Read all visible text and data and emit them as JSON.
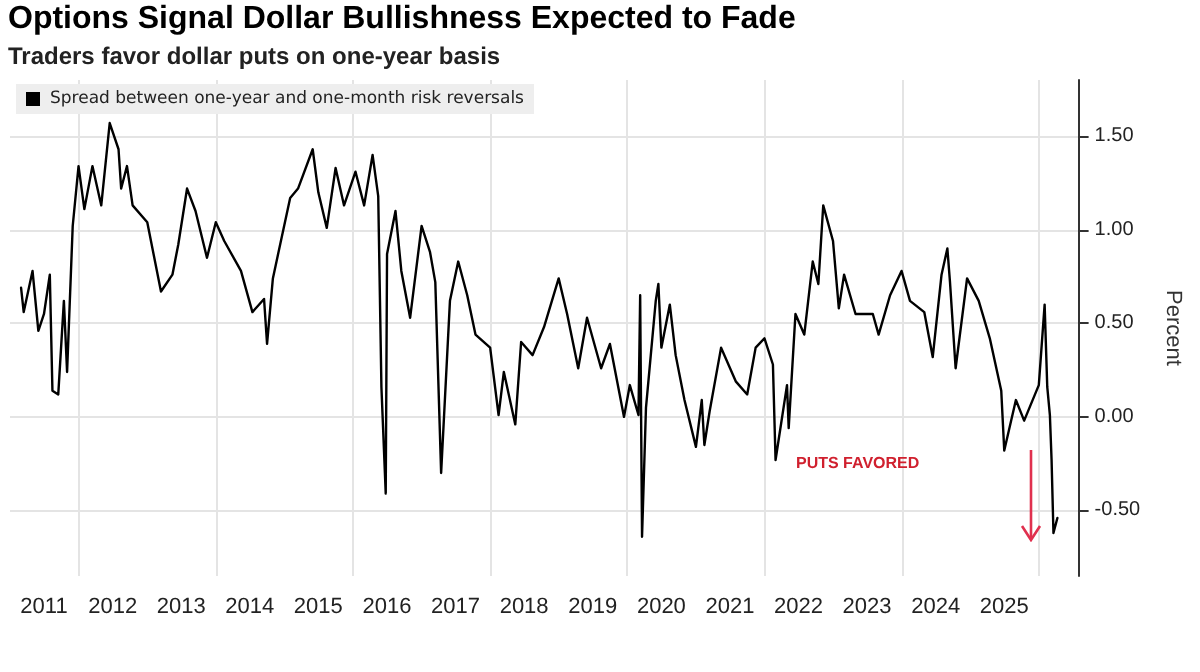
{
  "chart_data": {
    "type": "line",
    "title": "Options Signal Dollar Bullishness Expected to Fade",
    "subtitle": "Traders favor dollar puts on one-year basis",
    "ylabel": "Percent",
    "annotations": [
      "PUTS FAVORED"
    ],
    "series": [
      {
        "name": "Spread between one-year and one-month risk reversals",
        "color": "#000000",
        "x": [
          "2011-03-01",
          "2011-03-15",
          "2011-05-01",
          "2011-06-01",
          "2011-07-01",
          "2011-08-01",
          "2011-08-15",
          "2011-09-15",
          "2011-10-15",
          "2011-11-01",
          "2011-12-01",
          "2012-01-01",
          "2012-02-01",
          "2012-03-15",
          "2012-05-01",
          "2012-06-15",
          "2012-08-01",
          "2012-08-15",
          "2012-09-15",
          "2012-10-15",
          "2013-01-01",
          "2013-03-15",
          "2013-05-15",
          "2013-06-15",
          "2013-08-01",
          "2013-09-15",
          "2013-11-15",
          "2014-01-01",
          "2014-02-15",
          "2014-05-15",
          "2014-07-15",
          "2014-09-15",
          "2014-10-01",
          "2014-11-01",
          "2015-02-01",
          "2015-03-15",
          "2015-06-01",
          "2015-07-01",
          "2015-08-15",
          "2015-10-01",
          "2015-11-15",
          "2016-01-15",
          "2016-03-01",
          "2016-04-15",
          "2016-05-15",
          "2016-06-01",
          "2016-06-24",
          "2016-07-01",
          "2016-08-15",
          "2016-09-15",
          "2016-11-01",
          "2017-01-01",
          "2017-02-15",
          "2017-03-15",
          "2017-04-15",
          "2017-06-01",
          "2017-07-15",
          "2017-09-01",
          "2017-10-15",
          "2018-01-01",
          "2018-02-15",
          "2018-03-15",
          "2018-05-15",
          "2018-06-15",
          "2018-08-15",
          "2018-10-15",
          "2019-01-01",
          "2019-02-15",
          "2019-04-15",
          "2019-06-01",
          "2019-08-15",
          "2019-10-01",
          "2019-12-15",
          "2020-01-15",
          "2020-03-01",
          "2020-03-10",
          "2020-03-20",
          "2020-04-10",
          "2020-06-01",
          "2020-06-15",
          "2020-07-01",
          "2020-08-15",
          "2020-09-15",
          "2020-11-01",
          "2021-01-01",
          "2021-02-01",
          "2021-02-15",
          "2021-03-15",
          "2021-05-15",
          "2021-08-01",
          "2021-10-01",
          "2021-11-15",
          "2022-01-01",
          "2022-02-15",
          "2022-03-01",
          "2022-05-01",
          "2022-05-10",
          "2022-06-15",
          "2022-08-01",
          "2022-09-15",
          "2022-10-15",
          "2022-11-10",
          "2023-01-01",
          "2023-02-01",
          "2023-03-01",
          "2023-05-01",
          "2023-08-01",
          "2023-09-01",
          "2023-11-01",
          "2024-01-01",
          "2024-02-15",
          "2024-05-01",
          "2024-06-15",
          "2024-08-01",
          "2024-09-01",
          "2024-09-15",
          "2024-10-15",
          "2024-12-15",
          "2025-02-15",
          "2025-04-15",
          "2025-06-15",
          "2025-07-01",
          "2025-09-01",
          "2025-10-15",
          "2026-01-01",
          "2026-02-01",
          "2026-02-15",
          "2026-03-01",
          "2026-03-10",
          "2026-03-20",
          "2026-04-10"
        ],
        "values": [
          0.69,
          0.56,
          0.78,
          0.46,
          0.55,
          0.76,
          0.14,
          0.12,
          0.62,
          0.24,
          1.02,
          1.34,
          1.11,
          1.34,
          1.13,
          1.57,
          1.43,
          1.22,
          1.34,
          1.13,
          1.04,
          0.67,
          0.76,
          0.92,
          1.22,
          1.1,
          0.85,
          1.04,
          0.94,
          0.78,
          0.56,
          0.63,
          0.39,
          0.74,
          1.17,
          1.22,
          1.43,
          1.2,
          1.01,
          1.33,
          1.13,
          1.31,
          1.13,
          1.4,
          1.18,
          0.16,
          -0.41,
          0.87,
          1.1,
          0.78,
          0.53,
          1.02,
          0.88,
          0.72,
          -0.3,
          0.62,
          0.83,
          0.65,
          0.44,
          0.37,
          0.01,
          0.24,
          -0.04,
          0.4,
          0.33,
          0.48,
          0.74,
          0.55,
          0.26,
          0.53,
          0.26,
          0.39,
          0.0,
          0.17,
          0.01,
          0.65,
          -0.64,
          0.05,
          0.62,
          0.71,
          0.37,
          0.6,
          0.33,
          0.09,
          -0.16,
          0.09,
          -0.15,
          0.03,
          0.37,
          0.19,
          0.12,
          0.37,
          0.42,
          0.28,
          -0.23,
          0.17,
          -0.06,
          0.55,
          0.44,
          0.83,
          0.71,
          1.13,
          0.94,
          0.58,
          0.76,
          0.55,
          0.55,
          0.44,
          0.65,
          0.78,
          0.62,
          0.56,
          0.32,
          0.76,
          0.9,
          0.72,
          0.26,
          0.74,
          0.62,
          0.42,
          0.14,
          -0.18,
          0.09,
          -0.02,
          0.17,
          0.6,
          0.16,
          0.01,
          -0.23,
          -0.62,
          -0.54
        ]
      }
    ],
    "xlim": [
      "2011-01-01",
      "2026-08-01"
    ],
    "xticks": [
      {
        "value": "2011-07-01",
        "label": "2011"
      },
      {
        "value": "2012-07-01",
        "label": "2012"
      },
      {
        "value": "2013-07-01",
        "label": "2013"
      },
      {
        "value": "2014-07-01",
        "label": "2014"
      },
      {
        "value": "2015-07-01",
        "label": "2015"
      },
      {
        "value": "2016-07-01",
        "label": "2016"
      },
      {
        "value": "2017-07-01",
        "label": "2017"
      },
      {
        "value": "2018-07-01",
        "label": "2018"
      },
      {
        "value": "2019-07-01",
        "label": "2019"
      },
      {
        "value": "2020-07-01",
        "label": "2020"
      },
      {
        "value": "2021-07-01",
        "label": "2021"
      },
      {
        "value": "2022-07-01",
        "label": "2022"
      },
      {
        "value": "2023-07-01",
        "label": "2023"
      },
      {
        "value": "2024-07-01",
        "label": "2024"
      },
      {
        "value": "2025-07-01",
        "label": "2025"
      },
      {
        "value": "2012-01-01",
        "label": null
      },
      {
        "value": "2014-01-01",
        "label": null
      },
      {
        "value": "2016-01-01",
        "label": null
      },
      {
        "value": "2018-01-01",
        "label": null
      },
      {
        "value": "2020-01-01",
        "label": null
      },
      {
        "value": "2022-01-01",
        "label": null
      },
      {
        "value": "2024-01-01",
        "label": null
      },
      {
        "value": "2026-01-01",
        "label": null
      }
    ],
    "ylim": [
      -0.85,
      1.8
    ],
    "yticks": [
      {
        "value": -0.5,
        "label": "-0.50"
      },
      {
        "value": 0,
        "label": "0.00"
      },
      {
        "value": 0.5,
        "label": "0.50"
      },
      {
        "value": 1,
        "label": "1.00"
      },
      {
        "value": 1.5,
        "label": "1.50"
      }
    ],
    "grid": true,
    "legend": "top left",
    "marker": "none",
    "line_style": "solid"
  }
}
